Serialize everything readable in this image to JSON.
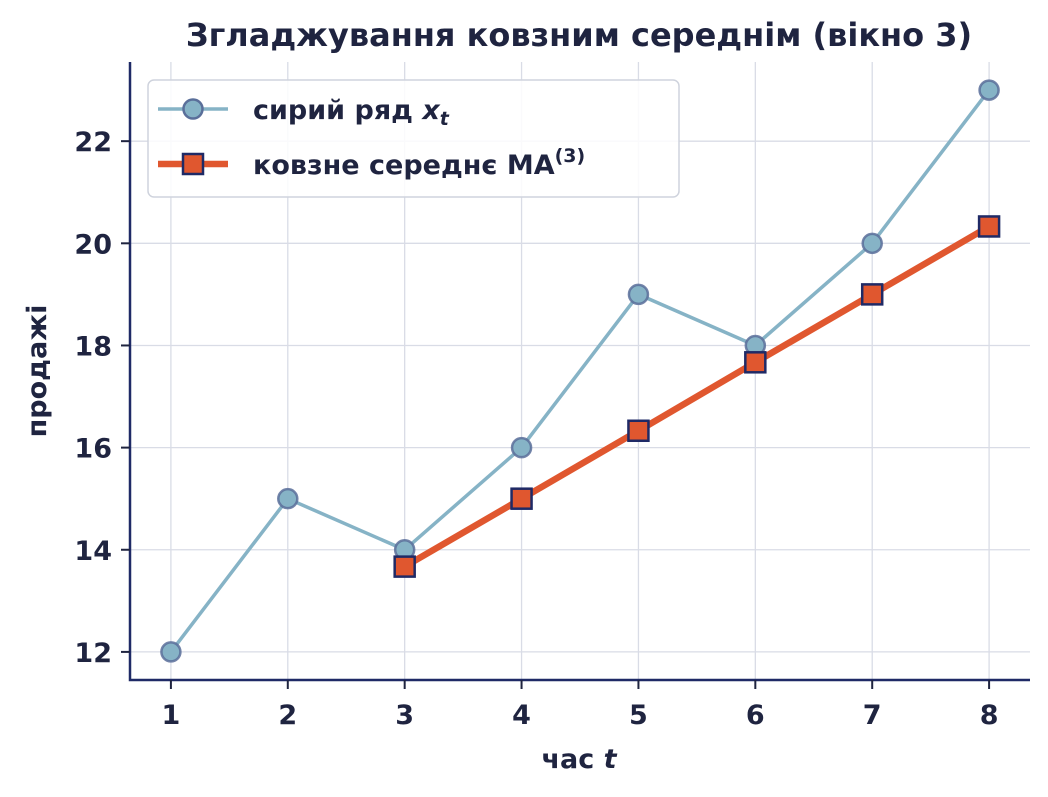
{
  "chart_data": {
    "type": "line",
    "title": "Згладжування ковзним середнім (вікно 3)",
    "xlabel": "час",
    "xlabel_var": "t",
    "ylabel": "продажі",
    "x": [
      1,
      2,
      3,
      4,
      5,
      6,
      7,
      8
    ],
    "xlim": [
      0.65,
      8.35
    ],
    "ylim": [
      11.45,
      23.55
    ],
    "yticks": [
      12,
      14,
      16,
      18,
      20,
      22
    ],
    "grid": true,
    "legend_position": "top-left",
    "series": [
      {
        "name": "сирий ряд",
        "name_var": "x",
        "name_sub": "t",
        "x": [
          1,
          2,
          3,
          4,
          5,
          6,
          7,
          8
        ],
        "values": [
          12,
          15,
          14,
          16,
          19,
          18,
          20,
          23
        ],
        "color": "#86b3c6",
        "marker_edge": "#5a6f9a",
        "marker": "circle"
      },
      {
        "name": "ковзне середнє MA",
        "name_sup": "(3)",
        "x": [
          3,
          4,
          5,
          6,
          7,
          8
        ],
        "values": [
          13.67,
          15.0,
          16.33,
          17.67,
          19.0,
          20.33
        ],
        "color": "#e0572f",
        "marker_edge": "#1f2a66",
        "marker": "square"
      }
    ]
  }
}
